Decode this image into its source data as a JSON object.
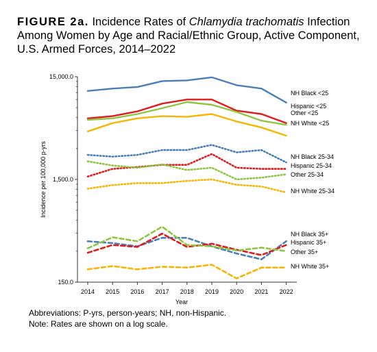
{
  "header": {
    "figure_label": "FIGURE 2a.",
    "title_part1": "Incidence Rates of ",
    "title_species": "Chlamydia trachomatis",
    "title_part2": " Infection Among Women by Age and Racial/Ethnic Group, Active Component, U.S. Armed Forces, 2014–2022"
  },
  "chart_data": {
    "type": "line",
    "title": "Incidence Rates of Chlamydia trachomatis Infection Among Women by Age and Racial/Ethnic Group, Active Component, U.S. Armed Forces, 2014–2022",
    "xlabel": "Year",
    "ylabel": "Incidence per 100,000 p-yrs",
    "yscale": "log",
    "ylim": [
      150,
      15000
    ],
    "yticks": [
      150,
      1500,
      15000
    ],
    "ytick_labels": [
      "150.0",
      "1,500.0",
      "15,000.0"
    ],
    "x": [
      "2014",
      "2015",
      "2016",
      "2017",
      "2018",
      "2019",
      "2020",
      "2021",
      "2022"
    ],
    "grid": false,
    "legend": "direct labels at right end of lines",
    "series": [
      {
        "name": "NH Black <25",
        "color": "#4a7ebb",
        "dash": "solid",
        "values": [
          10900,
          11500,
          11900,
          13600,
          13800,
          14800,
          12400,
          11500,
          8400
        ]
      },
      {
        "name": "Hispanic <25",
        "color": "#e31a1c",
        "dash": "solid",
        "values": [
          5900,
          6200,
          6900,
          8200,
          9000,
          9000,
          7000,
          6500,
          5300
        ]
      },
      {
        "name": "Other  <25",
        "color": "#8dc63f",
        "dash": "solid",
        "values": [
          5700,
          5900,
          6500,
          7400,
          8500,
          8000,
          6800,
          5600,
          5100
        ]
      },
      {
        "name": "NH White <25",
        "color": "#f7b500",
        "dash": "solid",
        "values": [
          4400,
          5300,
          5900,
          6200,
          6100,
          6500,
          5500,
          4800,
          4000
        ]
      },
      {
        "name": "NH Black 25-34",
        "color": "#4a7ebb",
        "dash": "dot",
        "values": [
          2600,
          2500,
          2600,
          2900,
          2900,
          3250,
          2750,
          2900,
          2200
        ]
      },
      {
        "name": "Hispanic 25-34",
        "color": "#e31a1c",
        "dash": "dot",
        "values": [
          1600,
          1900,
          1980,
          2080,
          2080,
          2650,
          1950,
          1900,
          1900
        ]
      },
      {
        "name": "Other 25-34",
        "color": "#8dc63f",
        "dash": "dot",
        "values": [
          2250,
          2050,
          1950,
          2100,
          1850,
          1950,
          1500,
          1560,
          1680
        ]
      },
      {
        "name": "NH White 25-34",
        "color": "#f7b500",
        "dash": "dot",
        "values": [
          1220,
          1320,
          1380,
          1380,
          1450,
          1500,
          1330,
          1280,
          1120
        ]
      },
      {
        "name": "NH Black 35+",
        "color": "#4a7ebb",
        "dash": "dash",
        "values": [
          375,
          360,
          335,
          405,
          405,
          335,
          285,
          250,
          375
        ]
      },
      {
        "name": "Hispanic 35+",
        "color": "#e31a1c",
        "dash": "dash",
        "values": [
          290,
          345,
          330,
          445,
          330,
          355,
          310,
          275,
          345
        ]
      },
      {
        "name": "Other 35+",
        "color": "#8dc63f",
        "dash": "dash",
        "values": [
          320,
          410,
          375,
          520,
          345,
          335,
          305,
          325,
          300
        ]
      },
      {
        "name": "NH White 35+",
        "color": "#f7b500",
        "dash": "dash",
        "values": [
          200,
          215,
          200,
          212,
          208,
          222,
          163,
          208,
          208
        ]
      }
    ]
  },
  "notes": {
    "abbreviations": "Abbreviations: P-yrs, person-years; NH, non-Hispanic.",
    "scale_note": "Note: Rates are shown on a log scale."
  }
}
